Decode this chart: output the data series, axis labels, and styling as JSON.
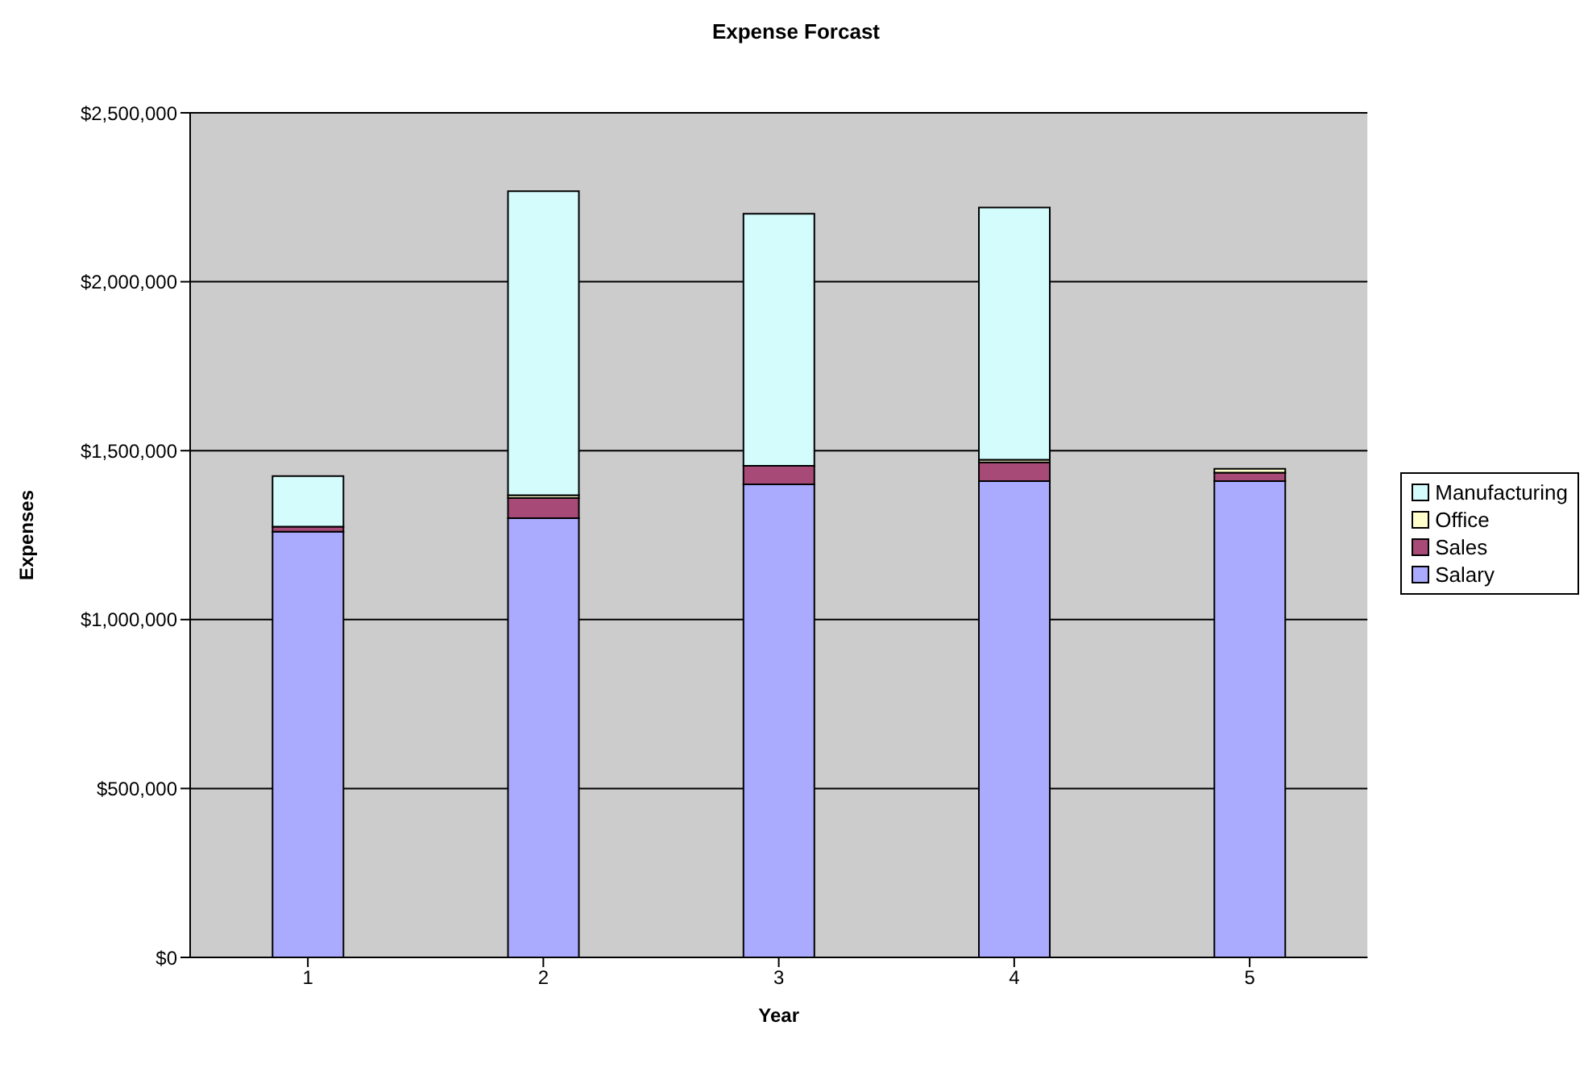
{
  "chart_data": {
    "type": "bar",
    "title": "Expense Forcast",
    "xlabel": "Year",
    "ylabel": "Expenses",
    "categories": [
      "1",
      "2",
      "3",
      "4",
      "5"
    ],
    "stacked": true,
    "series": [
      {
        "name": "Salary",
        "color": "#aaaaff",
        "values": [
          1260000,
          1300000,
          1400000,
          1410000,
          1410000
        ]
      },
      {
        "name": "Sales",
        "color": "#a84a78",
        "values": [
          15000,
          60000,
          55000,
          55000,
          25000
        ]
      },
      {
        "name": "Office",
        "color": "#ffffcc",
        "values": [
          null,
          8000,
          null,
          8000,
          11000
        ]
      },
      {
        "name": "Manufacturing",
        "color": "#d4fcfc",
        "values": [
          150000,
          900000,
          746000,
          747000,
          0
        ]
      }
    ],
    "ylim": [
      0,
      2500000
    ],
    "yticks": [
      {
        "value": 0,
        "label": "$0"
      },
      {
        "value": 500000,
        "label": "$500,000"
      },
      {
        "value": 1000000,
        "label": "$1,000,000"
      },
      {
        "value": 1500000,
        "label": "$1,500,000"
      },
      {
        "value": 2000000,
        "label": "$2,000,000"
      },
      {
        "value": 2500000,
        "label": "$2,500,000"
      }
    ],
    "grid": "y",
    "legend": "right"
  }
}
